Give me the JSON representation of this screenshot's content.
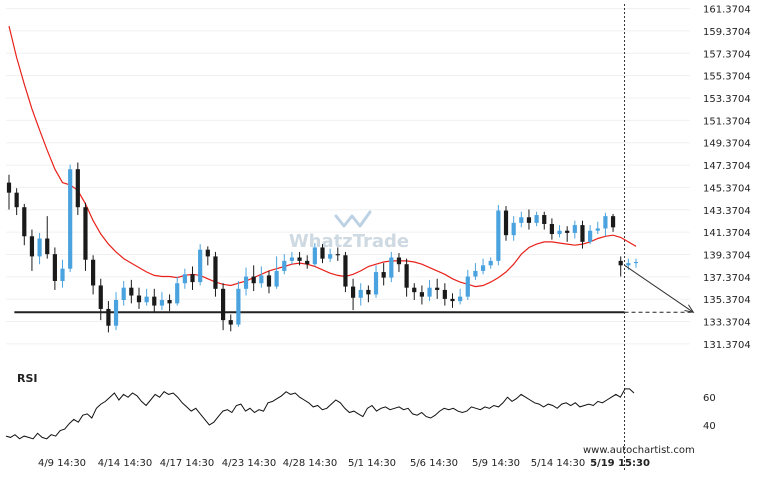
{
  "chart_data": [
    {
      "type": "candlestick",
      "role": "price",
      "watermark": "WhatzTrade",
      "y_ticks": [
        "161.3704",
        "159.3704",
        "157.3704",
        "155.3704",
        "153.3704",
        "151.3704",
        "149.3704",
        "147.3704",
        "145.3704",
        "143.3704",
        "141.3704",
        "139.3704",
        "137.3704",
        "135.3704",
        "133.3704",
        "131.3704"
      ],
      "ylim": [
        130.2,
        161.6
      ],
      "x_ticks": [
        "4/9 14:30",
        "4/14 14:30",
        "4/17 14:30",
        "4/23 14:30",
        "4/28 14:30",
        "5/1 14:30",
        "5/6 14:30",
        "5/9 14:30",
        "5/14 14:30",
        "5/19 15:30"
      ],
      "highlight_tick": "5/19 15:30",
      "support_level": 134.2,
      "support_range": [
        0.7,
        80.5
      ],
      "forecast": {
        "from": [
          80.5,
          138.4
        ],
        "to": [
          89.5,
          134.2
        ]
      },
      "ma_points": [
        [
          0,
          159.8
        ],
        [
          1,
          157.0
        ],
        [
          2,
          154.6
        ],
        [
          3,
          152.4
        ],
        [
          4,
          150.5
        ],
        [
          5,
          148.7
        ],
        [
          6,
          147.0
        ],
        [
          7,
          145.8
        ],
        [
          8,
          145.6
        ],
        [
          9,
          145.1
        ],
        [
          10,
          143.9
        ],
        [
          11,
          142.4
        ],
        [
          12,
          141.2
        ],
        [
          13,
          140.3
        ],
        [
          14,
          139.6
        ],
        [
          15,
          139.0
        ],
        [
          16,
          138.6
        ],
        [
          17,
          138.2
        ],
        [
          18,
          137.8
        ],
        [
          19,
          137.5
        ],
        [
          20,
          137.4
        ],
        [
          21,
          137.4
        ],
        [
          22,
          137.3
        ],
        [
          23,
          137.5
        ],
        [
          24,
          137.6
        ],
        [
          25,
          137.5
        ],
        [
          26,
          137.2
        ],
        [
          27,
          136.9
        ],
        [
          28,
          136.7
        ],
        [
          29,
          136.6
        ],
        [
          30,
          136.8
        ],
        [
          31,
          137.0
        ],
        [
          32,
          137.3
        ],
        [
          33,
          137.6
        ],
        [
          34,
          137.9
        ],
        [
          35,
          138.1
        ],
        [
          36,
          138.3
        ],
        [
          37,
          138.5
        ],
        [
          38,
          138.6
        ],
        [
          39,
          138.5
        ],
        [
          40,
          138.3
        ],
        [
          41,
          138.0
        ],
        [
          42,
          137.7
        ],
        [
          43,
          137.5
        ],
        [
          44,
          137.4
        ],
        [
          45,
          137.6
        ],
        [
          46,
          137.9
        ],
        [
          47,
          138.3
        ],
        [
          48,
          138.5
        ],
        [
          49,
          138.7
        ],
        [
          50,
          138.8
        ],
        [
          51,
          138.8
        ],
        [
          52,
          138.8
        ],
        [
          53,
          138.7
        ],
        [
          54,
          138.5
        ],
        [
          55,
          138.2
        ],
        [
          56,
          137.9
        ],
        [
          57,
          137.6
        ],
        [
          58,
          137.2
        ],
        [
          59,
          136.9
        ],
        [
          60,
          136.7
        ],
        [
          61,
          136.5
        ],
        [
          62,
          136.6
        ],
        [
          63,
          136.9
        ],
        [
          64,
          137.3
        ],
        [
          65,
          137.8
        ],
        [
          66,
          138.5
        ],
        [
          67,
          139.4
        ],
        [
          68,
          140.0
        ],
        [
          69,
          140.3
        ],
        [
          70,
          140.5
        ],
        [
          71,
          140.5
        ],
        [
          72,
          140.4
        ],
        [
          73,
          140.3
        ],
        [
          74,
          140.2
        ],
        [
          75,
          140.3
        ],
        [
          76,
          140.5
        ],
        [
          77,
          140.8
        ],
        [
          78,
          141.0
        ],
        [
          79,
          141.1
        ],
        [
          80,
          140.9
        ],
        [
          81,
          140.5
        ],
        [
          82,
          140.1
        ]
      ],
      "candles": [
        [
          0,
          145.8,
          144.9,
          146.5,
          143.4
        ],
        [
          1,
          144.9,
          143.6,
          145.3,
          142.9
        ],
        [
          2,
          143.6,
          141.0,
          143.9,
          140.2
        ],
        [
          3,
          141.0,
          139.2,
          141.6,
          137.9
        ],
        [
          4,
          139.2,
          140.8,
          141.3,
          138.5
        ],
        [
          5,
          140.8,
          139.4,
          142.8,
          139.0
        ],
        [
          6,
          139.4,
          137.0,
          140.0,
          136.2
        ],
        [
          7,
          137.0,
          138.1,
          138.9,
          136.4
        ],
        [
          8,
          138.1,
          147.0,
          147.4,
          137.8
        ],
        [
          9,
          147.0,
          143.6,
          147.6,
          142.9
        ],
        [
          10,
          143.6,
          138.9,
          144.0,
          137.9
        ],
        [
          11,
          138.9,
          136.6,
          139.3,
          135.8
        ],
        [
          12,
          136.6,
          134.5,
          137.2,
          133.5
        ],
        [
          13,
          134.5,
          133.0,
          135.2,
          132.4
        ],
        [
          14,
          133.0,
          135.3,
          136.0,
          132.6
        ],
        [
          15,
          135.3,
          136.4,
          137.0,
          134.8
        ],
        [
          16,
          136.4,
          135.7,
          137.1,
          135.0
        ],
        [
          17,
          135.7,
          135.1,
          136.4,
          134.5
        ],
        [
          18,
          135.1,
          135.6,
          136.3,
          134.8
        ],
        [
          19,
          135.6,
          134.8,
          136.3,
          134.2
        ],
        [
          20,
          134.8,
          135.3,
          136.0,
          134.4
        ],
        [
          21,
          135.3,
          135.0,
          135.8,
          134.3
        ],
        [
          22,
          135.0,
          136.8,
          137.4,
          134.8
        ],
        [
          23,
          136.8,
          137.6,
          138.1,
          136.3
        ],
        [
          24,
          137.6,
          136.9,
          138.3,
          136.2
        ],
        [
          25,
          136.9,
          139.8,
          140.3,
          136.6
        ],
        [
          26,
          139.8,
          139.2,
          140.1,
          138.4
        ],
        [
          27,
          139.2,
          136.3,
          139.6,
          135.6
        ],
        [
          28,
          136.3,
          133.5,
          136.8,
          132.6
        ],
        [
          29,
          133.5,
          133.1,
          134.0,
          132.5
        ],
        [
          30,
          133.1,
          136.3,
          137.0,
          132.9
        ],
        [
          31,
          136.3,
          137.4,
          138.2,
          135.7
        ],
        [
          32,
          137.4,
          136.8,
          138.4,
          136.1
        ],
        [
          33,
          136.8,
          137.5,
          138.3,
          136.4
        ],
        [
          34,
          137.5,
          136.5,
          137.9,
          135.9
        ],
        [
          35,
          136.5,
          137.9,
          139.2,
          136.3
        ],
        [
          36,
          137.9,
          138.8,
          139.4,
          137.6
        ],
        [
          37,
          138.8,
          139.1,
          139.6,
          138.5
        ],
        [
          38,
          139.1,
          138.8,
          139.6,
          138.4
        ],
        [
          39,
          138.8,
          138.5,
          139.3,
          138.1
        ],
        [
          40,
          138.5,
          140.0,
          140.4,
          138.3
        ],
        [
          41,
          140.0,
          139.0,
          140.3,
          138.6
        ],
        [
          42,
          139.0,
          139.4,
          139.9,
          138.7
        ],
        [
          43,
          139.4,
          139.3,
          140.0,
          138.8
        ],
        [
          44,
          139.3,
          136.5,
          139.6,
          136.0
        ],
        [
          45,
          136.5,
          135.5,
          137.2,
          134.4
        ],
        [
          46,
          135.5,
          136.2,
          136.8,
          134.8
        ],
        [
          47,
          136.2,
          135.8,
          136.6,
          135.1
        ],
        [
          48,
          135.8,
          137.8,
          138.4,
          135.5
        ],
        [
          49,
          137.8,
          137.3,
          138.6,
          136.6
        ],
        [
          50,
          137.3,
          139.1,
          139.6,
          136.9
        ],
        [
          51,
          139.1,
          138.5,
          139.5,
          137.8
        ],
        [
          52,
          138.5,
          136.4,
          139.0,
          135.6
        ],
        [
          53,
          136.4,
          136.0,
          136.8,
          135.3
        ],
        [
          54,
          136.0,
          135.6,
          136.6,
          134.9
        ],
        [
          55,
          135.6,
          136.4,
          137.1,
          135.2
        ],
        [
          56,
          136.4,
          136.2,
          137.2,
          135.4
        ],
        [
          57,
          136.2,
          135.4,
          136.8,
          134.8
        ],
        [
          58,
          135.4,
          135.2,
          135.9,
          134.6
        ],
        [
          59,
          135.2,
          135.6,
          136.3,
          134.9
        ],
        [
          60,
          135.6,
          137.4,
          138.0,
          135.3
        ],
        [
          61,
          137.4,
          137.9,
          138.6,
          137.1
        ],
        [
          62,
          137.9,
          138.4,
          139.0,
          137.6
        ],
        [
          63,
          138.4,
          138.8,
          139.1,
          138.1
        ],
        [
          64,
          138.8,
          143.3,
          143.8,
          138.4
        ],
        [
          65,
          143.3,
          141.1,
          143.7,
          140.6
        ],
        [
          66,
          141.1,
          142.2,
          142.8,
          140.6
        ],
        [
          67,
          142.2,
          142.7,
          143.2,
          141.8
        ],
        [
          68,
          142.7,
          142.2,
          143.4,
          141.6
        ],
        [
          69,
          142.2,
          142.9,
          143.2,
          141.9
        ],
        [
          70,
          142.9,
          142.1,
          143.2,
          141.6
        ],
        [
          71,
          142.1,
          141.2,
          142.6,
          140.7
        ],
        [
          72,
          141.2,
          141.5,
          142.0,
          140.9
        ],
        [
          73,
          141.5,
          141.3,
          141.9,
          140.5
        ],
        [
          74,
          141.3,
          142.0,
          142.4,
          140.8
        ],
        [
          75,
          142.0,
          140.5,
          142.4,
          139.9
        ],
        [
          76,
          140.5,
          141.5,
          142.0,
          140.3
        ],
        [
          77,
          141.5,
          141.7,
          142.3,
          141.2
        ],
        [
          78,
          141.7,
          142.8,
          143.1,
          141.0
        ],
        [
          79,
          142.8,
          141.8,
          143.0,
          141.4
        ],
        [
          80,
          138.8,
          138.4,
          139.2,
          137.4
        ],
        [
          81,
          138.4,
          138.6,
          139.0,
          138.0
        ],
        [
          82,
          138.6,
          138.7,
          139.0,
          138.2
        ]
      ]
    },
    {
      "type": "line",
      "role": "oscillator",
      "title": "RSI",
      "y_ticks": [
        60,
        40
      ],
      "ylim": [
        27,
        76
      ],
      "values": [
        32,
        31,
        33,
        30,
        32,
        31,
        30,
        34,
        31,
        30,
        33,
        32,
        36,
        37,
        41,
        44,
        42,
        47,
        48,
        45,
        52,
        55,
        57,
        60,
        63,
        58,
        62,
        60,
        63,
        61,
        57,
        54,
        58,
        62,
        60,
        64,
        62,
        63,
        60,
        56,
        53,
        50,
        52,
        48,
        44,
        40,
        42,
        46,
        50,
        51,
        49,
        54,
        55,
        50,
        52,
        49,
        51,
        50,
        56,
        57,
        59,
        61,
        64,
        62,
        63,
        60,
        58,
        56,
        53,
        54,
        51,
        52,
        55,
        58,
        56,
        52,
        49,
        50,
        48,
        46,
        52,
        54,
        50,
        52,
        53,
        51,
        52,
        53,
        51,
        52,
        48,
        47,
        49,
        46,
        45,
        47,
        50,
        52,
        51,
        52,
        50,
        49,
        50,
        53,
        52,
        51,
        53,
        52,
        54,
        53,
        56,
        60,
        57,
        59,
        62,
        60,
        58,
        56,
        55,
        53,
        55,
        54,
        52,
        55,
        56,
        54,
        56,
        53,
        54,
        55,
        54,
        57,
        56,
        58,
        60,
        62,
        60,
        66,
        66,
        63
      ]
    }
  ],
  "footer": {
    "source_text": "www.autochartist.com"
  }
}
